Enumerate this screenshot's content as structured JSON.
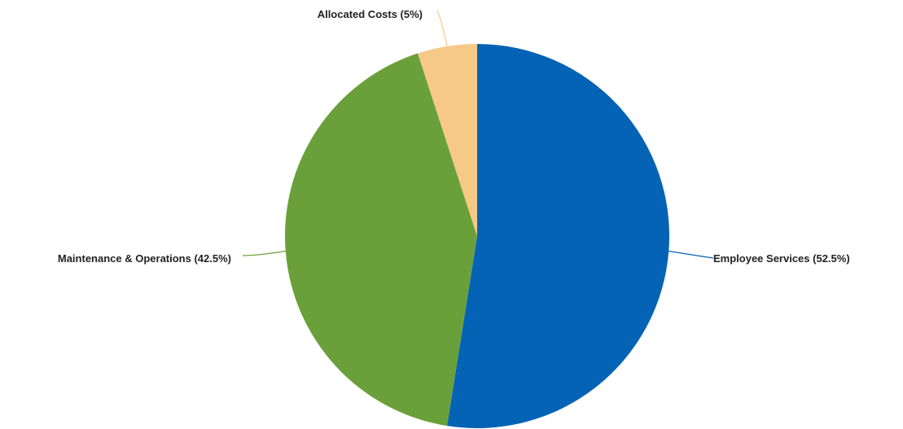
{
  "chart_data": {
    "type": "pie",
    "title": "",
    "start": "12 o'clock",
    "direction": "clockwise",
    "legend": "none",
    "slices": [
      {
        "label": "Employee Services (52.5%)",
        "value": 52.5,
        "color": "#0563b6"
      },
      {
        "label": "Maintenance & Operations (42.5%)",
        "value": 42.5,
        "color": "#6aa039"
      },
      {
        "label": "Allocated Costs (5%)",
        "value": 5,
        "color": "#f7c987"
      }
    ]
  }
}
